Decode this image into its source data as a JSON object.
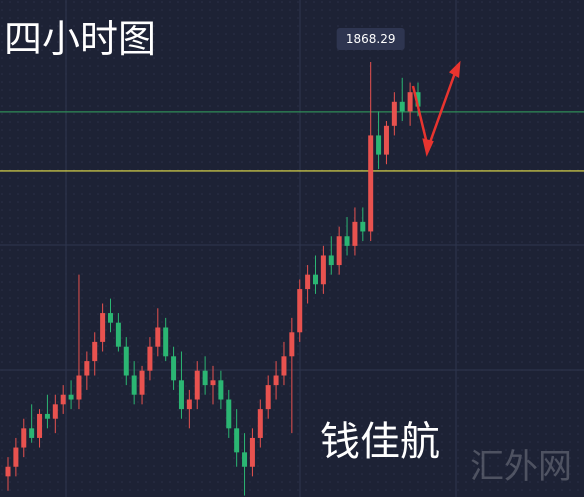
{
  "chart_data": {
    "type": "candlestick",
    "title": "四小时图",
    "author": "钱佳航",
    "watermark": "汇外网",
    "up_color": "#e8524f",
    "down_color": "#2bb673",
    "ylim": [
      1777.7,
      1881.2
    ],
    "hlines": [
      {
        "value": 1845.6,
        "color": "#e8e24a"
      },
      {
        "value": 1857.9,
        "color": "#2e8b57"
      }
    ],
    "open": [
      1782,
      1784,
      1788,
      1792,
      1790,
      1795,
      1794,
      1797,
      1799,
      1798,
      1803,
      1806,
      1810,
      1816,
      1814,
      1809,
      1803,
      1799,
      1804,
      1809,
      1813,
      1807,
      1802,
      1796,
      1798,
      1804,
      1801,
      1802,
      1798,
      1792,
      1787,
      1784,
      1790,
      1796,
      1801,
      1803,
      1807,
      1812,
      1821,
      1824,
      1822,
      1828,
      1826,
      1832,
      1830,
      1835,
      1833,
      1853,
      1849,
      1855,
      1860,
      1858,
      1862
    ],
    "high": [
      1786,
      1790,
      1794,
      1797,
      1796,
      1799,
      1799,
      1801,
      1802,
      1824,
      1808,
      1812,
      1818,
      1819,
      1816,
      1811,
      1806,
      1805,
      1811,
      1817,
      1815,
      1809,
      1808,
      1800,
      1806,
      1807,
      1805,
      1804,
      1800,
      1796,
      1791,
      1792,
      1798,
      1803,
      1806,
      1810,
      1815,
      1823,
      1826,
      1828,
      1830,
      1832,
      1834,
      1836,
      1838,
      1838,
      1868.29,
      1858,
      1856,
      1862,
      1865,
      1864,
      1864
    ],
    "low": [
      1779,
      1782,
      1786,
      1789,
      1788,
      1792,
      1791,
      1795,
      1796,
      1796,
      1800,
      1803,
      1808,
      1812,
      1808,
      1801,
      1797,
      1797,
      1802,
      1807,
      1806,
      1800,
      1794,
      1792,
      1796,
      1799,
      1797,
      1796,
      1790,
      1784,
      1778,
      1782,
      1788,
      1794,
      1798,
      1801,
      1791,
      1810,
      1818,
      1820,
      1820,
      1824,
      1824,
      1828,
      1828,
      1831,
      1831,
      1846,
      1847,
      1853,
      1856,
      1855,
      1857
    ],
    "close": [
      1784,
      1788,
      1792,
      1790,
      1795,
      1794,
      1797,
      1799,
      1798,
      1803,
      1806,
      1810,
      1816,
      1814,
      1809,
      1803,
      1799,
      1804,
      1809,
      1813,
      1807,
      1802,
      1796,
      1798,
      1804,
      1801,
      1802,
      1798,
      1792,
      1787,
      1784,
      1790,
      1796,
      1801,
      1803,
      1807,
      1812,
      1821,
      1824,
      1822,
      1828,
      1826,
      1832,
      1830,
      1835,
      1833,
      1853,
      1849,
      1855,
      1860,
      1858,
      1862,
      1859
    ]
  }
}
